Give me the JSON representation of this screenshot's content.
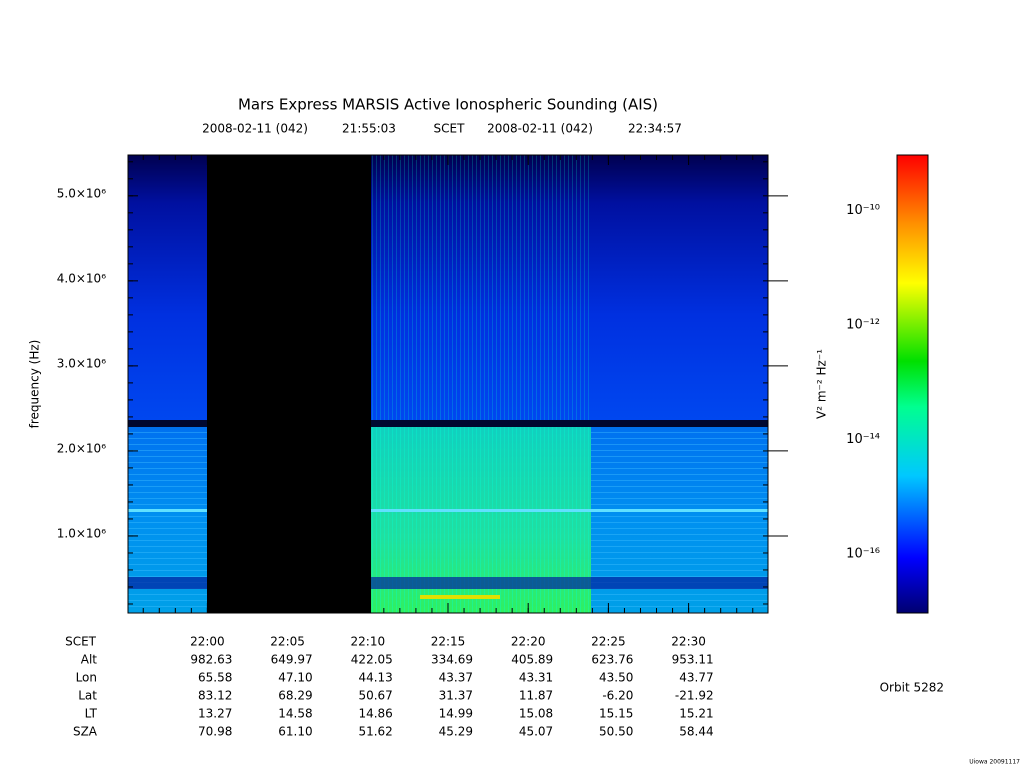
{
  "chart_data": {
    "type": "spectrogram",
    "title": "Mars Express MARSIS Active Ionospheric Sounding (AIS)",
    "date_label": "2008-02-11 (042)",
    "time_system": "SCET",
    "xlim": [
      "21:55:03",
      "22:34:57"
    ],
    "xticks": [
      "22:00",
      "22:05",
      "22:10",
      "22:15",
      "22:20",
      "22:25",
      "22:30"
    ],
    "ylabel": "frequency (Hz)",
    "ylim": [
      94000,
      5480000
    ],
    "yticks": [
      {
        "value": 1000000,
        "label": "1.0×10⁶"
      },
      {
        "value": 2000000,
        "label": "2.0×10⁶"
      },
      {
        "value": 3000000,
        "label": "3.0×10⁶"
      },
      {
        "value": 4000000,
        "label": "4.0×10⁶"
      },
      {
        "value": 5000000,
        "label": "5.0×10⁶"
      }
    ],
    "colorbar": {
      "label": "V² m⁻² Hz⁻¹",
      "log_scale": true,
      "lim": [
        1e-17,
        1e-09
      ],
      "ticks": [
        {
          "value": 1e-10,
          "label": "10⁻¹⁰"
        },
        {
          "value": 1e-12,
          "label": "10⁻¹²"
        },
        {
          "value": 1e-14,
          "label": "10⁻¹⁴"
        },
        {
          "value": 1e-16,
          "label": "10⁻¹⁶"
        }
      ]
    },
    "ephemeris": {
      "labels": [
        "SCET",
        "Alt",
        "Lon",
        "Lat",
        "LT",
        "SZA"
      ],
      "rows": [
        [
          "982.63",
          "649.97",
          "422.05",
          "334.69",
          "405.89",
          "623.76",
          "953.11"
        ],
        [
          "65.58",
          "47.10",
          "44.13",
          "43.37",
          "43.31",
          "43.50",
          "43.77"
        ],
        [
          "83.12",
          "68.29",
          "50.67",
          "31.37",
          "11.87",
          "-6.20",
          "-21.92"
        ],
        [
          "13.27",
          "14.58",
          "14.86",
          "14.99",
          "15.08",
          "15.15",
          "15.21"
        ],
        [
          "70.98",
          "61.10",
          "51.62",
          "45.29",
          "45.07",
          "50.50",
          "58.44"
        ]
      ]
    },
    "orbit_label": "Orbit 5282",
    "credit": "Uiowa 20091117"
  }
}
